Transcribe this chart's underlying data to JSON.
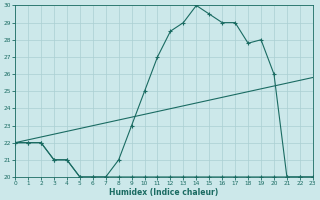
{
  "xlabel": "Humidex (Indice chaleur)",
  "bg_color": "#cce8ea",
  "grid_color": "#aacfd2",
  "line_color": "#1a6b62",
  "ylim": [
    20,
    30
  ],
  "xlim": [
    0,
    23
  ],
  "yticks": [
    20,
    21,
    22,
    23,
    24,
    25,
    26,
    27,
    28,
    29,
    30
  ],
  "xticks": [
    0,
    1,
    2,
    3,
    4,
    5,
    6,
    7,
    8,
    9,
    10,
    11,
    12,
    13,
    14,
    15,
    16,
    17,
    18,
    19,
    20,
    21,
    22,
    23
  ],
  "line1_x": [
    0,
    1,
    2,
    3,
    4,
    5,
    6,
    7,
    8,
    9,
    10,
    11,
    12,
    13,
    14,
    15,
    16,
    17,
    18,
    19,
    20,
    21,
    22,
    23
  ],
  "line1_y": [
    22,
    22,
    22,
    21,
    21,
    20,
    20,
    20,
    21,
    23,
    25,
    27,
    28.5,
    29,
    30,
    29.5,
    29,
    29,
    27.8,
    28,
    26,
    20,
    20,
    20
  ],
  "line2_x": [
    0,
    1,
    2,
    3,
    4,
    5,
    6,
    7,
    8,
    9,
    10,
    11,
    12,
    13,
    14,
    15,
    16,
    17,
    18,
    19,
    20,
    21,
    22,
    23
  ],
  "line2_y": [
    22,
    22,
    22,
    21,
    21,
    20,
    20,
    20,
    20,
    20,
    20,
    20,
    20,
    20,
    20,
    20,
    20,
    20,
    20,
    20,
    20,
    20,
    20,
    20
  ],
  "line3_x": [
    0,
    23
  ],
  "line3_y": [
    22.0,
    25.8
  ]
}
